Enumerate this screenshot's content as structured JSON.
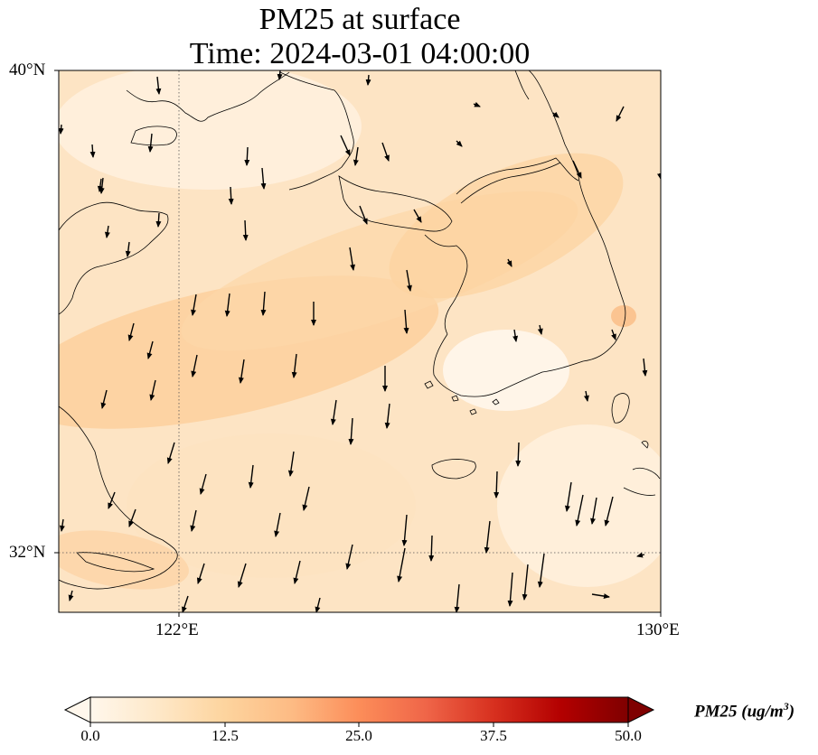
{
  "title": {
    "line1": "PM25 at surface",
    "line2": "Time: 2024-03-01 04:00:00"
  },
  "map": {
    "lon_range": [
      120,
      130
    ],
    "lat_range": [
      31,
      40
    ],
    "lat_ticks": [
      {
        "value": 40,
        "label": "40°N"
      },
      {
        "value": 32,
        "label": "32°N"
      }
    ],
    "lon_ticks": [
      {
        "value": 122,
        "label": "122°E"
      },
      {
        "value": 130,
        "label": "130°E"
      }
    ],
    "gridlines": "dotted at 122°E and 32°N",
    "wind_vectors": "black arrows, mostly pointing south / south-southwest"
  },
  "colorbar": {
    "label": "PM25 (ug/m",
    "label_sup": "3",
    "label_close": ")",
    "ticks": [
      "0.0",
      "12.5",
      "25.0",
      "37.5",
      "50.0"
    ],
    "range": [
      0,
      50
    ],
    "colormap": "OrRd",
    "colors": [
      "#fff7ec",
      "#fee8c8",
      "#fdd49e",
      "#fdbb84",
      "#fc8d59",
      "#ef6548",
      "#d7301f",
      "#b30000",
      "#7f0000"
    ]
  }
}
